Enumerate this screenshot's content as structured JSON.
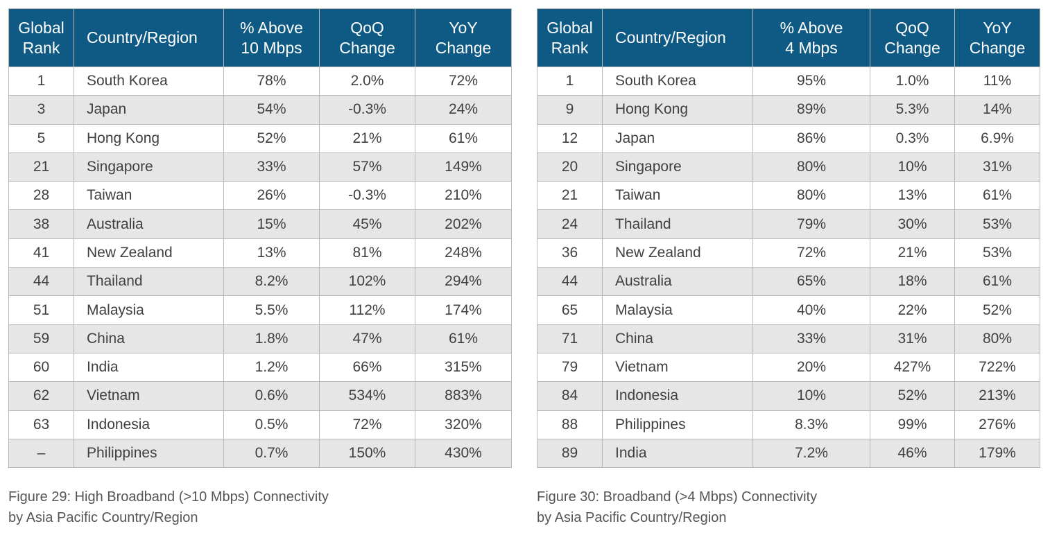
{
  "left_table": {
    "headers": {
      "rank": [
        "Global",
        "Rank"
      ],
      "country": [
        "Country/Region"
      ],
      "pct": [
        "% Above",
        "10 Mbps"
      ],
      "qoq": [
        "QoQ",
        "Change"
      ],
      "yoy": [
        "YoY",
        "Change"
      ]
    },
    "rows": [
      {
        "rank": "1",
        "country": "South Korea",
        "pct": "78%",
        "qoq": "2.0%",
        "yoy": "72%"
      },
      {
        "rank": "3",
        "country": "Japan",
        "pct": "54%",
        "qoq": "-0.3%",
        "yoy": "24%"
      },
      {
        "rank": "5",
        "country": "Hong Kong",
        "pct": "52%",
        "qoq": "21%",
        "yoy": "61%"
      },
      {
        "rank": "21",
        "country": "Singapore",
        "pct": "33%",
        "qoq": "57%",
        "yoy": "149%"
      },
      {
        "rank": "28",
        "country": "Taiwan",
        "pct": "26%",
        "qoq": "-0.3%",
        "yoy": "210%"
      },
      {
        "rank": "38",
        "country": "Australia",
        "pct": "15%",
        "qoq": "45%",
        "yoy": "202%"
      },
      {
        "rank": "41",
        "country": "New Zealand",
        "pct": "13%",
        "qoq": "81%",
        "yoy": "248%"
      },
      {
        "rank": "44",
        "country": "Thailand",
        "pct": "8.2%",
        "qoq": "102%",
        "yoy": "294%"
      },
      {
        "rank": "51",
        "country": "Malaysia",
        "pct": "5.5%",
        "qoq": "112%",
        "yoy": "174%"
      },
      {
        "rank": "59",
        "country": "China",
        "pct": "1.8%",
        "qoq": "47%",
        "yoy": "61%"
      },
      {
        "rank": "60",
        "country": "India",
        "pct": "1.2%",
        "qoq": "66%",
        "yoy": "315%"
      },
      {
        "rank": "62",
        "country": "Vietnam",
        "pct": "0.6%",
        "qoq": "534%",
        "yoy": "883%"
      },
      {
        "rank": "63",
        "country": "Indonesia",
        "pct": "0.5%",
        "qoq": "72%",
        "yoy": "320%"
      },
      {
        "rank": "–",
        "country": "Philippines",
        "pct": "0.7%",
        "qoq": "150%",
        "yoy": "430%"
      }
    ],
    "caption": [
      "Figure 29: High Broadband (>10 Mbps) Connectivity",
      "by Asia Pacific Country/Region"
    ]
  },
  "right_table": {
    "headers": {
      "rank": [
        "Global",
        "Rank"
      ],
      "country": [
        "Country/Region"
      ],
      "pct": [
        "% Above",
        "4 Mbps"
      ],
      "qoq": [
        "QoQ",
        "Change"
      ],
      "yoy": [
        "YoY",
        "Change"
      ]
    },
    "rows": [
      {
        "rank": "1",
        "country": "South Korea",
        "pct": "95%",
        "qoq": "1.0%",
        "yoy": "11%"
      },
      {
        "rank": "9",
        "country": "Hong Kong",
        "pct": "89%",
        "qoq": "5.3%",
        "yoy": "14%"
      },
      {
        "rank": "12",
        "country": "Japan",
        "pct": "86%",
        "qoq": "0.3%",
        "yoy": "6.9%"
      },
      {
        "rank": "20",
        "country": "Singapore",
        "pct": "80%",
        "qoq": "10%",
        "yoy": "31%"
      },
      {
        "rank": "21",
        "country": "Taiwan",
        "pct": "80%",
        "qoq": "13%",
        "yoy": "61%"
      },
      {
        "rank": "24",
        "country": "Thailand",
        "pct": "79%",
        "qoq": "30%",
        "yoy": "53%"
      },
      {
        "rank": "36",
        "country": "New Zealand",
        "pct": "72%",
        "qoq": "21%",
        "yoy": "53%"
      },
      {
        "rank": "44",
        "country": "Australia",
        "pct": "65%",
        "qoq": "18%",
        "yoy": "61%"
      },
      {
        "rank": "65",
        "country": "Malaysia",
        "pct": "40%",
        "qoq": "22%",
        "yoy": "52%"
      },
      {
        "rank": "71",
        "country": "China",
        "pct": "33%",
        "qoq": "31%",
        "yoy": "80%"
      },
      {
        "rank": "79",
        "country": "Vietnam",
        "pct": "20%",
        "qoq": "427%",
        "yoy": "722%"
      },
      {
        "rank": "84",
        "country": "Indonesia",
        "pct": "10%",
        "qoq": "52%",
        "yoy": "213%"
      },
      {
        "rank": "88",
        "country": "Philippines",
        "pct": "8.3%",
        "qoq": "99%",
        "yoy": "276%"
      },
      {
        "rank": "89",
        "country": "India",
        "pct": "7.2%",
        "qoq": "46%",
        "yoy": "179%"
      }
    ],
    "caption": [
      "Figure 30: Broadband (>4 Mbps) Connectivity",
      "by Asia Pacific Country/Region"
    ]
  },
  "colors": {
    "header_bg": "#0e5a85",
    "header_text": "#ffffff",
    "row_alt_bg": "#e6e6e7",
    "grid_line": "#b9b9b9"
  }
}
